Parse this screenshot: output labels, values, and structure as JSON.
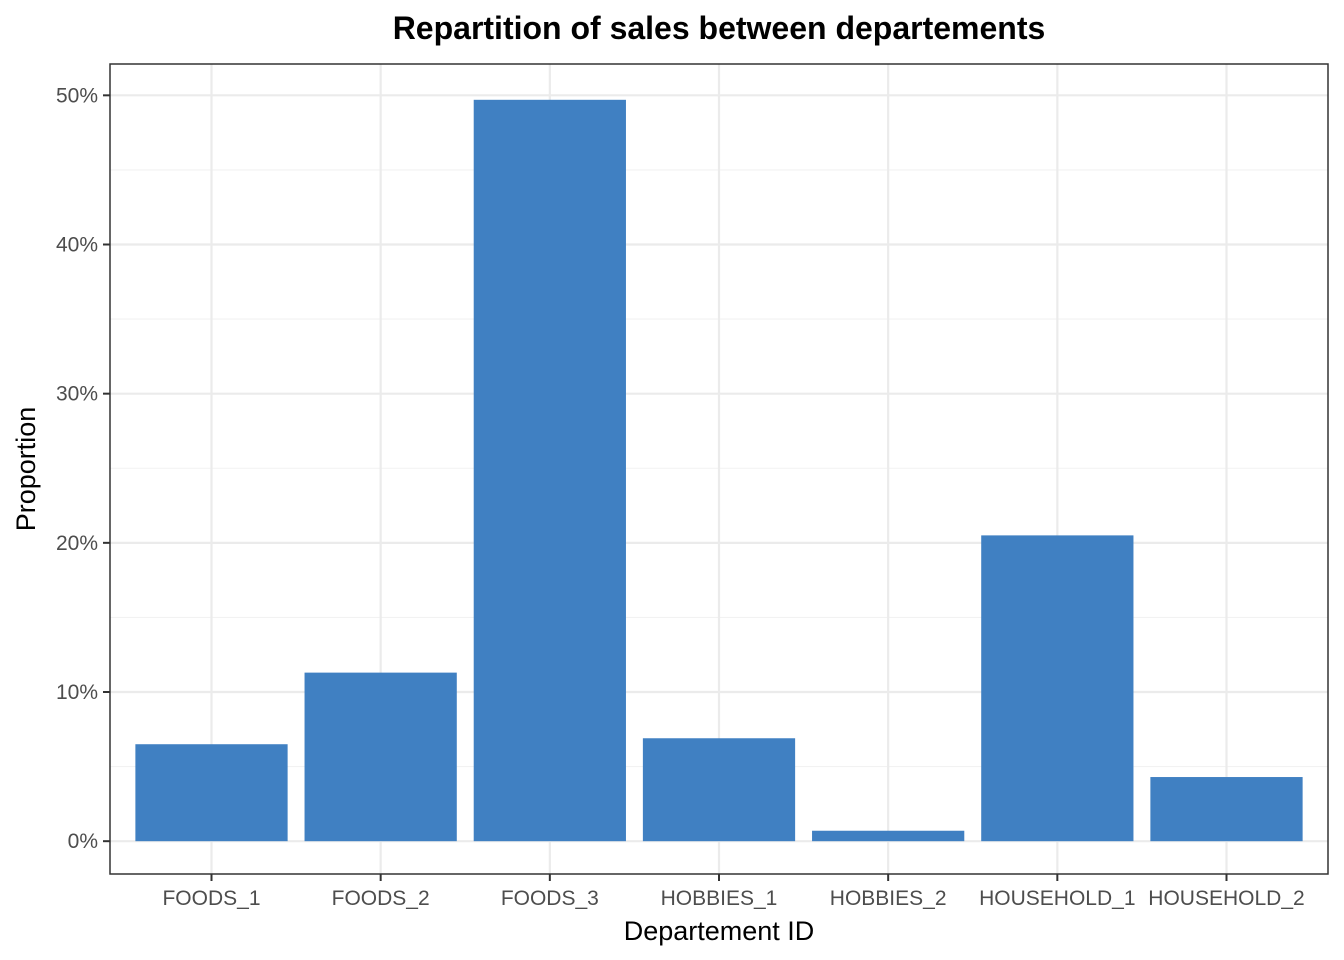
{
  "chart_data": {
    "type": "bar",
    "title": "Repartition of sales between departements",
    "xlabel": "Departement ID",
    "ylabel": "Proportion",
    "categories": [
      "FOODS_1",
      "FOODS_2",
      "FOODS_3",
      "HOBBIES_1",
      "HOBBIES_2",
      "HOUSEHOLD_1",
      "HOUSEHOLD_2"
    ],
    "values": [
      0.065,
      0.113,
      0.497,
      0.069,
      0.007,
      0.205,
      0.043
    ],
    "ylim": [
      -0.022,
      0.521
    ],
    "yticks": [
      0,
      0.1,
      0.2,
      0.3,
      0.4,
      0.5
    ],
    "ytick_labels": [
      "0%",
      "10%",
      "20%",
      "30%",
      "40%",
      "50%"
    ],
    "bar_color": "#4080C2",
    "grid": true,
    "legend": "none"
  }
}
